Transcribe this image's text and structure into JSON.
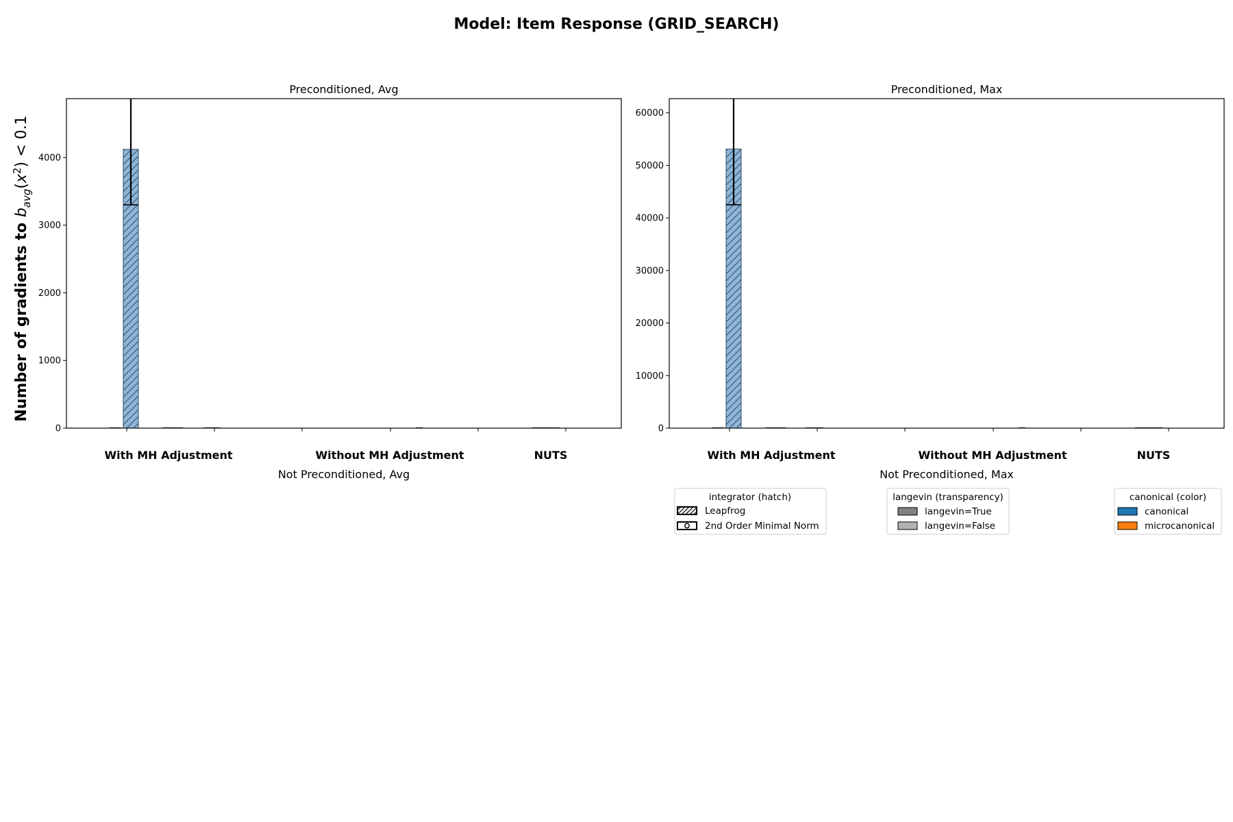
{
  "title": "Model: Item Response (GRID_SEARCH)",
  "ylabel": "Number of gradients to b_avg(x²) < 0.1",
  "ylabel_parts": {
    "prefix": "Number of gradients to ",
    "b": "b",
    "sub": "avg",
    "open": "(",
    "x": "x",
    "sup": "2",
    "rest": ") < 0.1"
  },
  "chart_data": [
    {
      "type": "bar",
      "title": "Preconditioned, Avg",
      "xlabel": "Not Preconditioned, Avg",
      "categories": [
        "With MH Adjustment",
        "Without MH Adjustment",
        "NUTS"
      ],
      "ylim": [
        0,
        4870
      ],
      "yticks": [
        0,
        1000,
        2000,
        3000,
        4000
      ],
      "ytick_labels": [
        "0",
        "1000",
        "2000",
        "3000",
        "4000"
      ],
      "grid": false,
      "bars": [
        {
          "category": "With MH Adjustment",
          "integrator": "Leapfrog",
          "langevin": "langevin=False",
          "canonical": "canonical",
          "value": 4120,
          "error_low": 3300,
          "error_high": 4870
        }
      ]
    },
    {
      "type": "bar",
      "title": "Preconditioned, Max",
      "xlabel": "Not Preconditioned, Max",
      "categories": [
        "With MH Adjustment",
        "Without MH Adjustment",
        "NUTS"
      ],
      "ylim": [
        0,
        62700
      ],
      "yticks": [
        0,
        10000,
        20000,
        30000,
        40000,
        50000,
        60000
      ],
      "ytick_labels": [
        "0",
        "10000",
        "20000",
        "30000",
        "40000",
        "50000",
        "60000"
      ],
      "grid": false,
      "bars": [
        {
          "category": "With MH Adjustment",
          "integrator": "Leapfrog",
          "langevin": "langevin=False",
          "canonical": "canonical",
          "value": 53100,
          "error_low": 42500,
          "error_high": 62700
        }
      ]
    }
  ],
  "legends": [
    {
      "title": "integrator (hatch)",
      "entries": [
        {
          "label": "Leapfrog",
          "pattern": "diagonal"
        },
        {
          "label": "2nd Order Minimal Norm",
          "pattern": "circles"
        }
      ]
    },
    {
      "title": "langevin (transparency)",
      "entries": [
        {
          "label": "langevin=True",
          "color": "#808080"
        },
        {
          "label": "langevin=False",
          "color": "#b3b3b3"
        }
      ]
    },
    {
      "title": "canonical (color)",
      "entries": [
        {
          "label": "canonical",
          "color": "#1f77b4"
        },
        {
          "label": "microcanonical",
          "color": "#ff7f0e"
        }
      ]
    }
  ],
  "colors": {
    "canonical": "#1f77b4",
    "microcanonical": "#ff7f0e",
    "bar_fill": "#8fb5d6"
  }
}
